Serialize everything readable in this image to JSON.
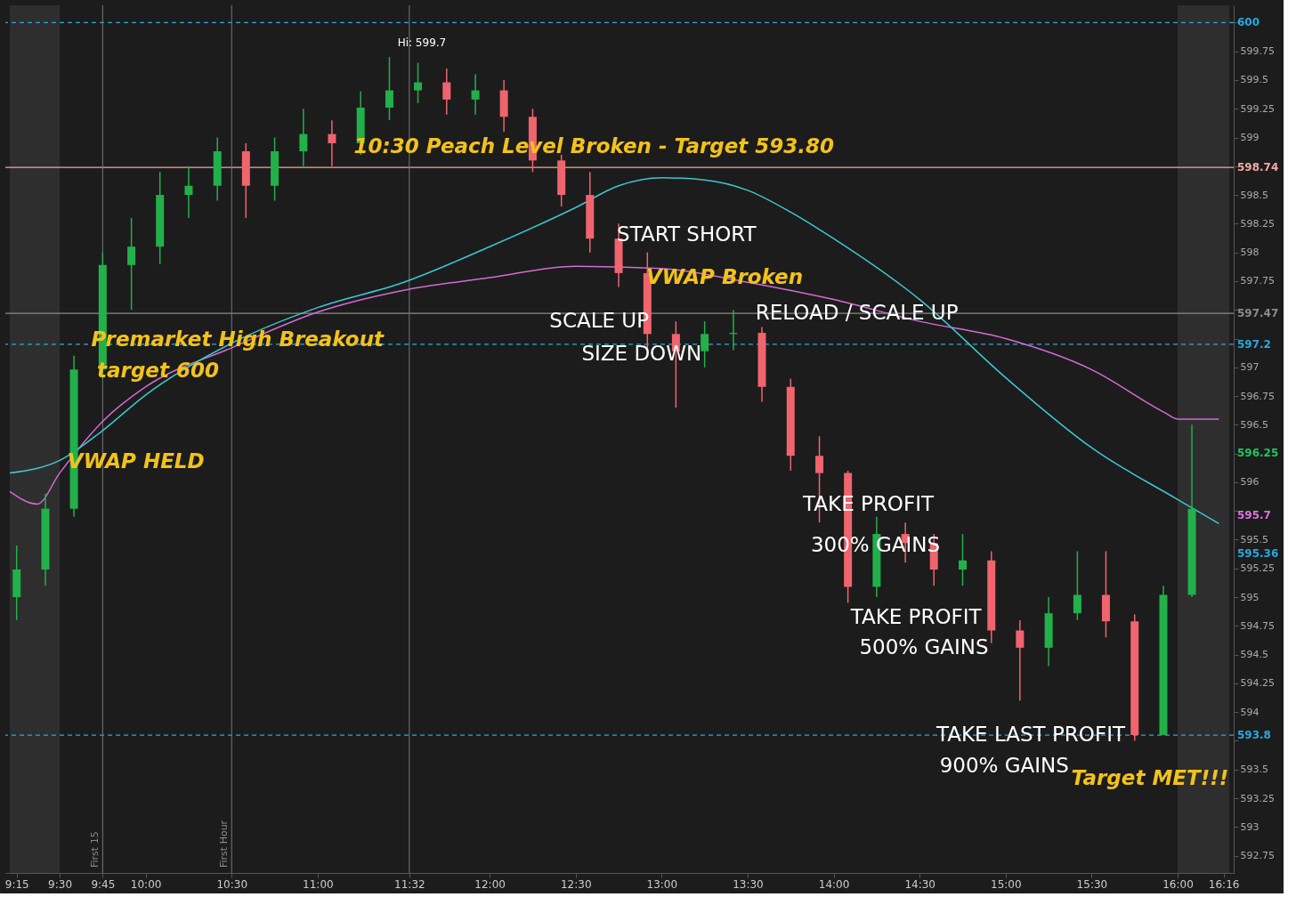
{
  "chart_data": {
    "type": "candlestick",
    "grid": false,
    "xlim": [
      9.21,
      16.3
    ],
    "ylim": [
      592.6,
      600.15
    ],
    "xticks": [
      {
        "value": 9.25,
        "label": "9:15"
      },
      {
        "value": 9.5,
        "label": "9:30"
      },
      {
        "value": 9.75,
        "label": "9:45"
      },
      {
        "value": 10,
        "label": "10:00"
      },
      {
        "value": 10.5,
        "label": "10:30"
      },
      {
        "value": 11,
        "label": "11:00"
      },
      {
        "value": 11.533,
        "label": "11:32"
      },
      {
        "value": 12,
        "label": "12:00"
      },
      {
        "value": 12.5,
        "label": "12:30"
      },
      {
        "value": 13,
        "label": "13:00"
      },
      {
        "value": 13.5,
        "label": "13:30"
      },
      {
        "value": 14,
        "label": "14:00"
      },
      {
        "value": 14.5,
        "label": "14:30"
      },
      {
        "value": 15,
        "label": "15:00"
      },
      {
        "value": 15.5,
        "label": "15:30"
      },
      {
        "value": 16,
        "label": "16:00"
      },
      {
        "value": 16.267,
        "label": "16:16"
      }
    ],
    "yticks": [
      592.75,
      593,
      593.25,
      593.5,
      {
        "value": 593.75,
        "label": null
      },
      594,
      594.25,
      594.5,
      594.75,
      595,
      595.25,
      595.5,
      {
        "value": 595.75,
        "label": null
      },
      596,
      {
        "value": 596.25,
        "label": null
      },
      596.5,
      596.75,
      597,
      {
        "value": 597.25,
        "label": null
      },
      {
        "value": 597.5,
        "label": null
      },
      597.75,
      598,
      598.25,
      598.5,
      {
        "value": 598.75,
        "label": null
      },
      599,
      599.25,
      599.5,
      599.75,
      {
        "value": 600,
        "label": null
      }
    ],
    "series": [
      {
        "type": "line",
        "color": "#d66ad6",
        "x": [
          9.21,
          9.37,
          9.5,
          9.75,
          10,
          10.5,
          11,
          11.5,
          12,
          12.5,
          13,
          13.5,
          14,
          14.5,
          15,
          15.5,
          15.92,
          16,
          16.24
        ],
        "values": [
          595.92,
          595.81,
          596.08,
          596.53,
          596.83,
          597.17,
          597.48,
          597.67,
          597.78,
          597.88,
          597.86,
          597.74,
          597.59,
          597.4,
          597.25,
          596.98,
          596.61,
          596.55,
          596.55
        ]
      },
      {
        "type": "line",
        "color": "#3cc8d0",
        "x": [
          9.21,
          9.5,
          9.75,
          10,
          10.5,
          11,
          11.5,
          12,
          12.5,
          12.75,
          13,
          13.25,
          13.5,
          13.75,
          14,
          14.5,
          15,
          15.5,
          16,
          16.24
        ],
        "values": [
          596.08,
          596.19,
          596.45,
          596.76,
          597.21,
          597.52,
          597.74,
          598.05,
          598.39,
          598.58,
          598.65,
          598.63,
          598.54,
          598.35,
          598.12,
          597.59,
          596.91,
          596.3,
          595.85,
          595.64
        ]
      },
      {
        "x": [
          9.25,
          9.417,
          9.583,
          9.75,
          9.917,
          10.083,
          10.25,
          10.417,
          10.583,
          10.75,
          10.917,
          11.083,
          11.25,
          11.417,
          11.583,
          11.75,
          11.917,
          12.083,
          12.25,
          12.417,
          12.583,
          12.75,
          12.917,
          13.083,
          13.25,
          13.417,
          13.583,
          13.75,
          13.917,
          14.083,
          14.25,
          14.417,
          14.583,
          14.75,
          14.917,
          15.083,
          15.25,
          15.417,
          15.583,
          15.75,
          15.917,
          16.083
        ],
        "ohlc": [
          [
            595.0,
            595.45,
            594.8,
            595.24
          ],
          [
            595.24,
            595.9,
            595.1,
            595.77
          ],
          [
            595.77,
            597.1,
            595.7,
            596.98
          ],
          [
            596.98,
            598.0,
            596.9,
            597.89
          ],
          [
            597.89,
            598.3,
            597.5,
            598.05
          ],
          [
            598.05,
            598.7,
            597.9,
            598.5
          ],
          [
            598.5,
            598.75,
            598.3,
            598.58
          ],
          [
            598.58,
            599.0,
            598.45,
            598.88
          ],
          [
            598.88,
            598.95,
            598.3,
            598.58
          ],
          [
            598.58,
            599.0,
            598.45,
            598.88
          ],
          [
            598.88,
            599.25,
            598.75,
            599.03
          ],
          [
            599.03,
            599.15,
            598.75,
            598.95
          ],
          [
            598.95,
            599.4,
            598.85,
            599.26
          ],
          [
            599.26,
            599.7,
            599.15,
            599.41
          ],
          [
            599.41,
            599.65,
            599.3,
            599.48
          ],
          [
            599.48,
            599.6,
            599.2,
            599.33
          ],
          [
            599.33,
            599.55,
            599.2,
            599.41
          ],
          [
            599.41,
            599.5,
            599.05,
            599.18
          ],
          [
            599.18,
            599.25,
            598.7,
            598.8
          ],
          [
            598.8,
            598.85,
            598.4,
            598.5
          ],
          [
            598.5,
            598.7,
            598.0,
            598.12
          ],
          [
            598.12,
            598.25,
            597.7,
            597.82
          ],
          [
            597.82,
            598.0,
            597.15,
            597.29
          ],
          [
            597.29,
            597.4,
            596.65,
            597.14
          ],
          [
            597.14,
            597.4,
            597.0,
            597.29
          ],
          [
            597.29,
            597.5,
            597.15,
            597.3
          ],
          [
            597.3,
            597.35,
            596.7,
            596.83
          ],
          [
            596.83,
            596.9,
            596.1,
            596.23
          ],
          [
            596.23,
            596.4,
            595.65,
            596.08
          ],
          [
            596.08,
            596.1,
            594.95,
            595.09
          ],
          [
            595.09,
            595.7,
            595.0,
            595.55
          ],
          [
            595.55,
            595.65,
            595.3,
            595.47
          ],
          [
            595.47,
            595.55,
            595.1,
            595.24
          ],
          [
            595.24,
            595.55,
            595.1,
            595.32
          ],
          [
            595.32,
            595.4,
            594.6,
            594.71
          ],
          [
            594.71,
            594.8,
            594.1,
            594.56
          ],
          [
            594.56,
            595.0,
            594.4,
            594.86
          ],
          [
            594.86,
            595.4,
            594.8,
            595.02
          ],
          [
            595.02,
            595.4,
            594.65,
            594.79
          ],
          [
            594.79,
            594.85,
            593.75,
            593.8
          ],
          [
            593.8,
            595.1,
            593.8,
            595.02
          ],
          [
            595.02,
            596.5,
            595.0,
            595.77
          ]
        ],
        "colors": [
          "#22b04a",
          "#22b04a",
          "#22b04a",
          "#22b04a",
          "#22b04a",
          "#22b04a",
          "#22b04a",
          "#22b04a",
          "#f0646e",
          "#22b04a",
          "#22b04a",
          "#f0646e",
          "#22b04a",
          "#22b04a",
          "#22b04a",
          "#f0646e",
          "#22b04a",
          "#f0646e",
          "#f0646e",
          "#f0646e",
          "#f0646e",
          "#f0646e",
          "#f0646e",
          "#f0646e",
          "#22b04a",
          "#22b04a",
          "#f0646e",
          "#f0646e",
          "#f0646e",
          "#f0646e",
          "#22b04a",
          "#f0646e",
          "#f0646e",
          "#22b04a",
          "#f0646e",
          "#f0646e",
          "#22b04a",
          "#22b04a",
          "#f0646e",
          "#f0646e",
          "#22b04a",
          "#22b04a"
        ]
      }
    ],
    "bands": [
      {
        "axis": "x",
        "from": 9.21,
        "to": 9.5,
        "color": "#3a3a3a"
      },
      {
        "axis": "x",
        "from": 16,
        "to": 16.3,
        "color": "#3a3a3a"
      }
    ],
    "ref_lines": [
      {
        "axis": "y",
        "value": 600,
        "label": "600",
        "color": "#29a8e0",
        "line_style": "dashed"
      },
      {
        "axis": "y",
        "value": 598.74,
        "label": "598.74",
        "color": "#f4a8a0",
        "line_style": "solid"
      },
      {
        "axis": "y",
        "value": 597.47,
        "label": "597.47",
        "color": "#8a8a8a",
        "line_style": "solid"
      },
      {
        "axis": "y",
        "value": 597.2,
        "label": "597.2",
        "color": "#29a8e0",
        "line_style": "dashed"
      },
      {
        "axis": "y",
        "value": 593.8,
        "label": "593.8",
        "color": "#29a8e0",
        "line_style": "dashed"
      },
      {
        "axis": "x",
        "value": 9.75,
        "label": "First 15",
        "color": "#777777",
        "line_style": "solid"
      },
      {
        "axis": "x",
        "value": 10.5,
        "label": "First Hour",
        "color": "#777777",
        "line_style": "solid"
      },
      {
        "axis": "x",
        "value": 11.533,
        "label": null,
        "color": "#777777",
        "line_style": "solid"
      }
    ],
    "annotations": [
      "10:30 Peach Level Broken - Target 593.80",
      "START  SHORT",
      "VWAP Broken",
      "SCALE UP",
      "SIZE DOWN",
      "RELOAD / SCALE UP",
      "Premarket High Breakout",
      "target 600",
      "VWAP HELD",
      "TAKE PROFIT",
      "300% GAINS",
      "TAKE PROFIT",
      "500% GAINS",
      "TAKE LAST PROFIT",
      "900% GAINS",
      "Target MET!!!",
      "Hi: 599.7",
      "596.25",
      "595.7",
      "595.36"
    ]
  }
}
